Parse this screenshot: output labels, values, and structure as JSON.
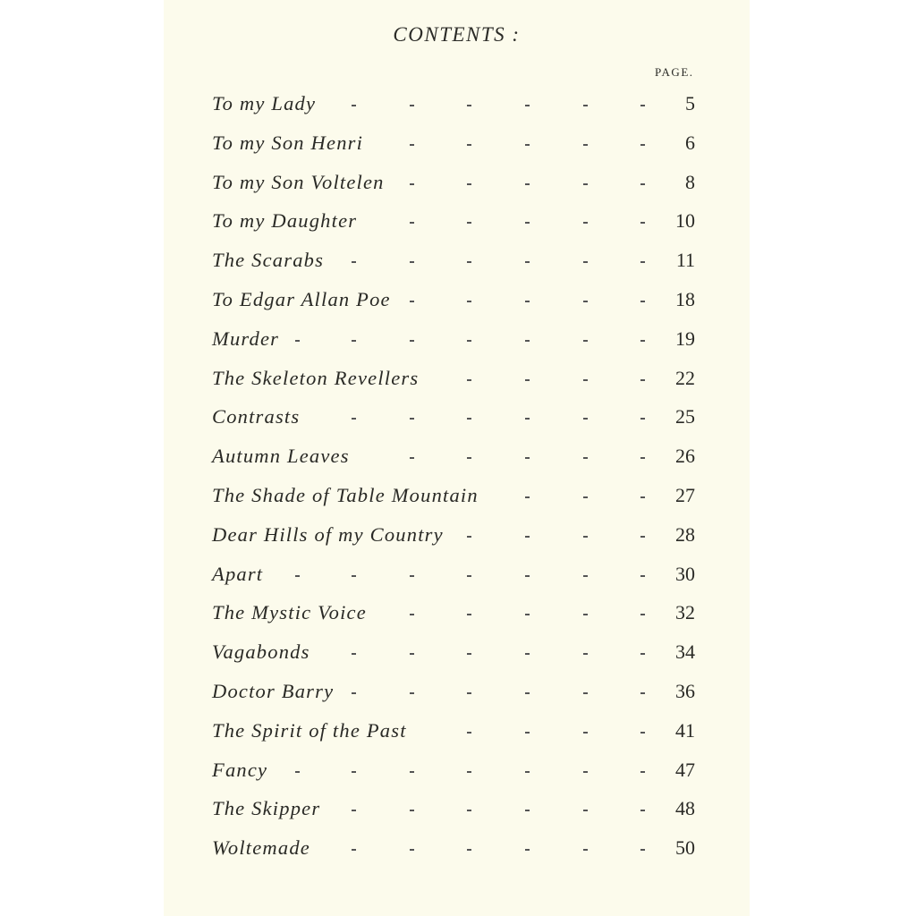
{
  "heading": "CONTENTS :",
  "page_column_label": "PAGE.",
  "entries": [
    {
      "title": "To my Lady",
      "page": "5"
    },
    {
      "title": "To my Son Henri",
      "page": "6"
    },
    {
      "title": "To my Son Voltelen",
      "page": "8"
    },
    {
      "title": "To my Daughter",
      "page": "10"
    },
    {
      "title": "The Scarabs",
      "page": "11"
    },
    {
      "title": "To Edgar Allan Poe",
      "page": "18"
    },
    {
      "title": "Murder",
      "page": "19"
    },
    {
      "title": "The Skeleton Revellers",
      "page": "22"
    },
    {
      "title": "Contrasts",
      "page": "25"
    },
    {
      "title": "Autumn Leaves",
      "page": "26"
    },
    {
      "title": "The Shade of Table Mountain",
      "page": "27"
    },
    {
      "title": "Dear Hills of my Country",
      "page": "28"
    },
    {
      "title": "Apart",
      "page": "30"
    },
    {
      "title": "The Mystic Voice",
      "page": "32"
    },
    {
      "title": "Vagabonds",
      "page": "34"
    },
    {
      "title": "Doctor Barry",
      "page": "36"
    },
    {
      "title": "The Spirit of the Past",
      "page": "41"
    },
    {
      "title": "Fancy",
      "page": "47"
    },
    {
      "title": "The Skipper",
      "page": "48"
    },
    {
      "title": "Woltemade",
      "page": "50"
    }
  ]
}
